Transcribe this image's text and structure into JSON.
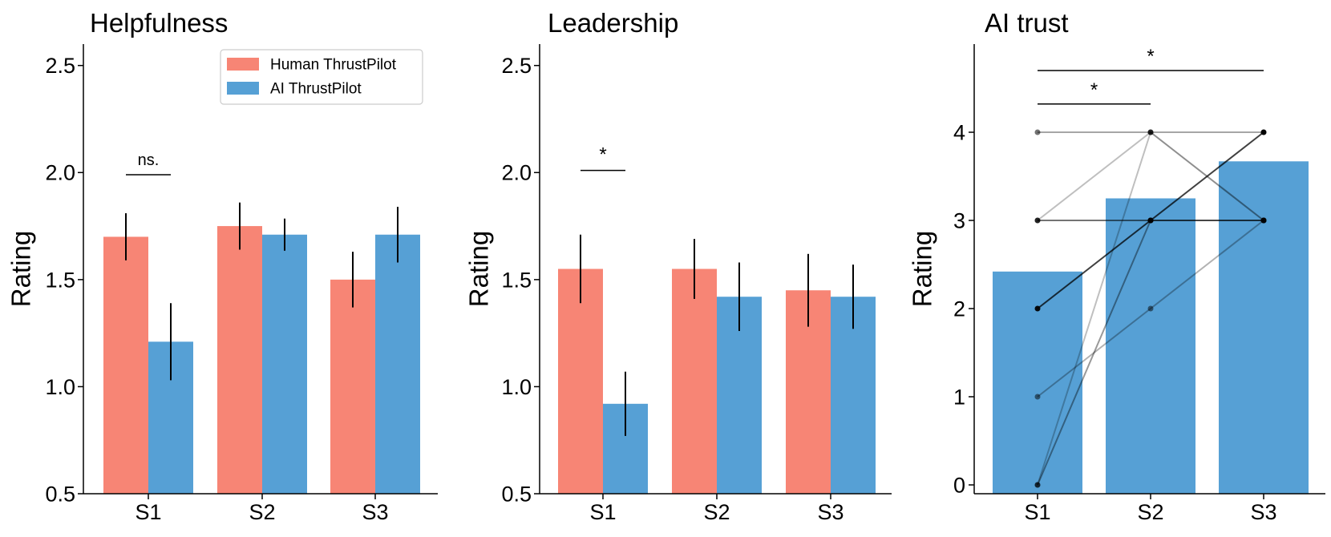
{
  "colors": {
    "human": "#f78575",
    "ai": "#56a0d5",
    "axis": "#000000",
    "line": "#000000"
  },
  "chart_data": [
    {
      "type": "bar",
      "title": "Helpfulness",
      "xlabel": "",
      "ylabel": "Rating",
      "categories": [
        "S1",
        "S2",
        "S3"
      ],
      "ylim": [
        0.5,
        2.6
      ],
      "yticks": [
        "0.5",
        "1.0",
        "1.5",
        "2.0",
        "2.5"
      ],
      "legend": {
        "location": "top-right",
        "entries": [
          "Human ThrustPilot",
          "AI ThrustPilot"
        ]
      },
      "series": [
        {
          "name": "Human ThrustPilot",
          "values": [
            1.7,
            1.75,
            1.5
          ],
          "errors": [
            0.11,
            0.11,
            0.13
          ]
        },
        {
          "name": "AI ThrustPilot",
          "values": [
            1.21,
            1.71,
            1.71
          ],
          "errors": [
            0.18,
            0.075,
            0.13
          ]
        }
      ],
      "annotations": [
        {
          "text": "ns.",
          "category": "S1",
          "y": 1.99
        }
      ]
    },
    {
      "type": "bar",
      "title": "Leadership",
      "xlabel": "",
      "ylabel": "Rating",
      "categories": [
        "S1",
        "S2",
        "S3"
      ],
      "ylim": [
        0.5,
        2.6
      ],
      "yticks": [
        "0.5",
        "1.0",
        "1.5",
        "2.0",
        "2.5"
      ],
      "series": [
        {
          "name": "Human ThrustPilot",
          "values": [
            1.55,
            1.55,
            1.45
          ],
          "errors": [
            0.16,
            0.14,
            0.17
          ]
        },
        {
          "name": "AI ThrustPilot",
          "values": [
            0.92,
            1.42,
            1.42
          ],
          "errors": [
            0.15,
            0.16,
            0.15
          ]
        }
      ],
      "annotations": [
        {
          "text": "*",
          "category": "S1",
          "y": 2.01
        }
      ]
    },
    {
      "type": "bar",
      "title": "AI trust",
      "xlabel": "",
      "ylabel": "Rating",
      "categories": [
        "S1",
        "S2",
        "S3"
      ],
      "ylim": [
        -0.1,
        5.0
      ],
      "yticks": [
        "0",
        "1",
        "2",
        "3",
        "4"
      ],
      "series": [
        {
          "name": "AI trust",
          "values": [
            2.42,
            3.25,
            3.67
          ]
        }
      ],
      "individual_lines": [
        {
          "values": [
            4,
            4,
            4
          ],
          "opacity": 0.35
        },
        {
          "values": [
            3,
            4,
            3
          ],
          "opacity": 0.25
        },
        {
          "values": [
            1,
            2,
            3
          ],
          "opacity": 0.3
        },
        {
          "values": [
            0,
            4,
            3
          ],
          "opacity": 0.25
        },
        {
          "values": [
            3,
            3,
            3
          ],
          "opacity": 0.55
        },
        {
          "values": [
            0,
            3,
            3
          ],
          "opacity": 0.4
        },
        {
          "values": [
            2,
            3,
            4
          ],
          "opacity": 0.75
        }
      ],
      "brackets": [
        {
          "text": "*",
          "from": "S1",
          "to": "S2",
          "y": 4.32
        },
        {
          "text": "*",
          "from": "S1",
          "to": "S3",
          "y": 4.7
        }
      ]
    }
  ]
}
